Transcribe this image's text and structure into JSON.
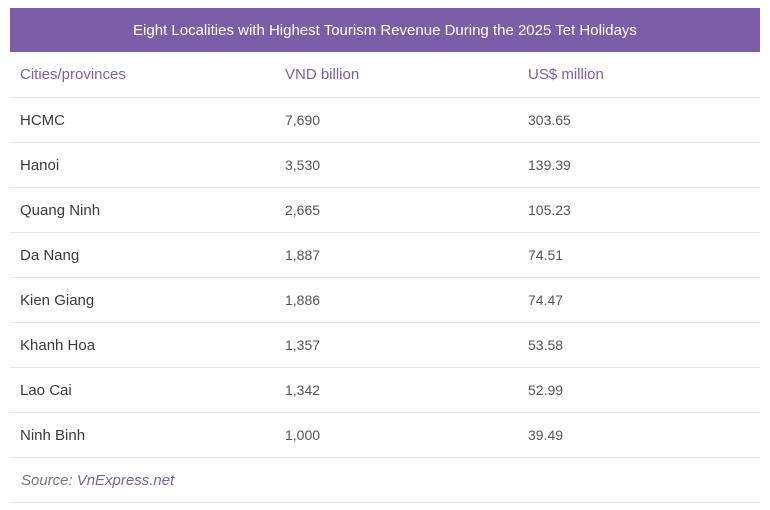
{
  "chart_data": {
    "type": "table",
    "title": "Eight Localities with Highest Tourism Revenue During the 2025 Tet Holidays",
    "columns": [
      "Cities/provinces",
      "VND billion",
      "US$ million"
    ],
    "rows": [
      [
        "HCMC",
        "7,690",
        "303.65"
      ],
      [
        "Hanoi",
        "3,530",
        "139.39"
      ],
      [
        "Quang Ninh",
        "2,665",
        "105.23"
      ],
      [
        "Da Nang",
        "1,887",
        "74.51"
      ],
      [
        "Kien Giang",
        "1,886",
        "74.47"
      ],
      [
        "Khanh Hoa",
        "1,357",
        "53.58"
      ],
      [
        "Lao Cai",
        "1,342",
        "52.99"
      ],
      [
        "Ninh Binh",
        "1,000",
        "39.49"
      ]
    ],
    "source_label": "Source:",
    "source_link": "VnExpress.net"
  },
  "colors": {
    "header_bg": "#7b5ea7",
    "accent": "#7b5ea7"
  }
}
